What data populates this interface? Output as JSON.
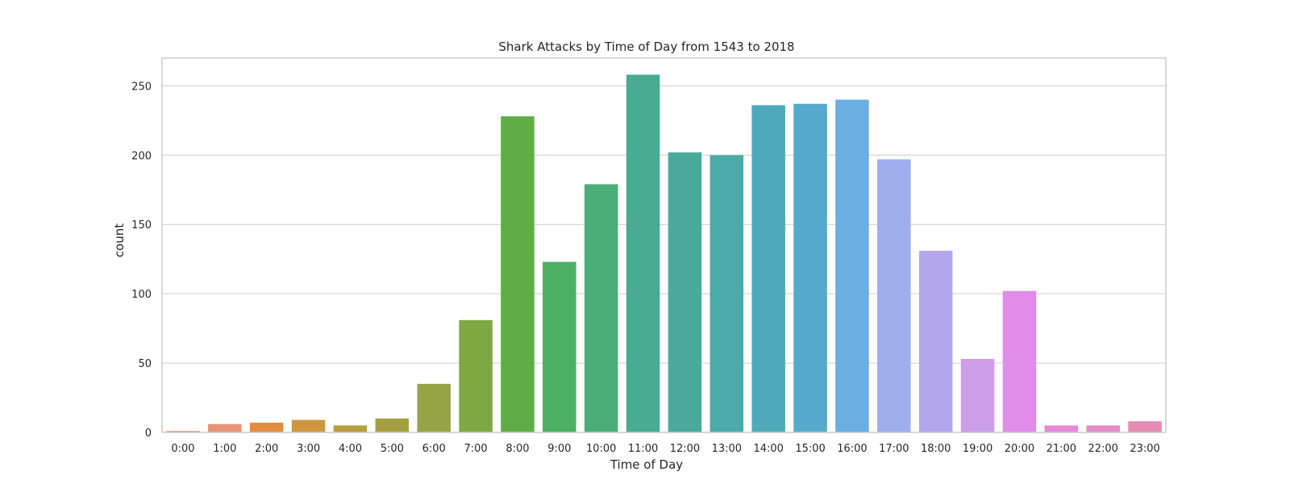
{
  "chart_data": {
    "type": "bar",
    "title": "Shark Attacks by Time of Day from 1543 to 2018",
    "xlabel": "Time of Day",
    "ylabel": "count",
    "categories": [
      "0:00",
      "1:00",
      "2:00",
      "3:00",
      "4:00",
      "5:00",
      "6:00",
      "7:00",
      "8:00",
      "9:00",
      "10:00",
      "11:00",
      "12:00",
      "13:00",
      "14:00",
      "15:00",
      "16:00",
      "17:00",
      "18:00",
      "19:00",
      "20:00",
      "21:00",
      "22:00",
      "23:00"
    ],
    "values": [
      1,
      6,
      7,
      9,
      5,
      10,
      35,
      81,
      228,
      123,
      179,
      258,
      202,
      200,
      236,
      237,
      240,
      197,
      131,
      53,
      102,
      5,
      5,
      8
    ],
    "colors": [
      "#e8827a",
      "#e8927a",
      "#e38c3e",
      "#cf953f",
      "#b99d3f",
      "#a49e3f",
      "#98a345",
      "#7ea843",
      "#5ead45",
      "#4daf64",
      "#4aae78",
      "#48ab92",
      "#4aaa9c",
      "#4baba9",
      "#4ea9bb",
      "#53aacb",
      "#6aaee2",
      "#9eaeec",
      "#b4a6ec",
      "#cc9eea",
      "#e08ce8",
      "#e68ad9",
      "#e68bc7",
      "#e68bb3"
    ],
    "ylim": [
      0,
      270
    ],
    "yticks": [
      0,
      50,
      100,
      150,
      200,
      250
    ],
    "grid": true,
    "legend": "none"
  }
}
